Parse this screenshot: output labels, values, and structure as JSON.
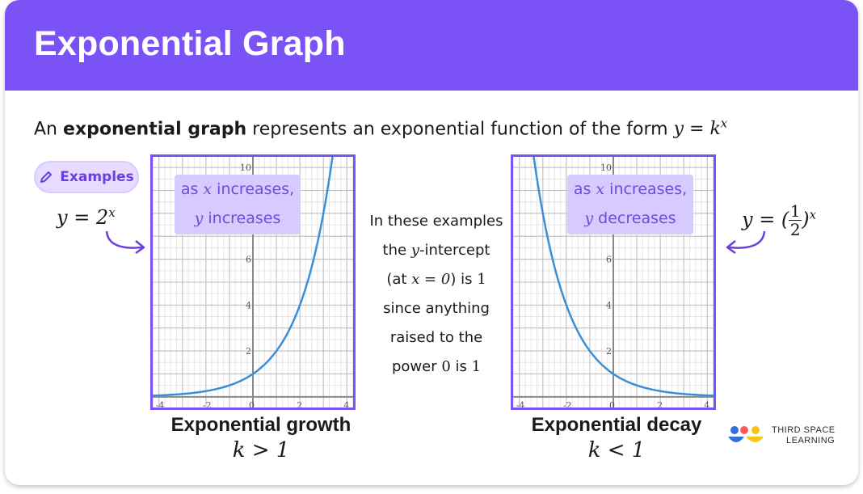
{
  "header": {
    "title": "Exponential Graph"
  },
  "intro": {
    "prefix": "An ",
    "bold": "exponential graph",
    "middle": " represents an exponential function of the form ",
    "formula_y": "y",
    "formula_eq": " = ",
    "formula_k": "k",
    "formula_exp": "x"
  },
  "examples_button": {
    "label": "Examples",
    "icon": "pencil-icon"
  },
  "left_equation": {
    "lhs": "y = 2",
    "exp": "x"
  },
  "right_equation": {
    "lhs": "y = (",
    "num": "1",
    "den": "2",
    "rhs": ")",
    "exp": "x"
  },
  "left_callout": {
    "line1_pre": "as ",
    "line1_var": "x",
    "line1_post": " increases,",
    "line2_var": "y",
    "line2_post": " increases"
  },
  "right_callout": {
    "line1_pre": "as ",
    "line1_var": "x",
    "line1_post": " increases,",
    "line2_var": "y",
    "line2_post": " decreases"
  },
  "middle_note": {
    "l1": "In these examples",
    "l2_pre": "the ",
    "l2_var": "y",
    "l2_post": "-intercept",
    "l3_pre": "(at ",
    "l3_math": "x = 0",
    "l3_mid": ") is ",
    "l3_val": "1",
    "l4": "since anything",
    "l5": "raised to the",
    "l6_pre": "power ",
    "l6_zero": "0",
    "l6_mid": " is ",
    "l6_one": "1"
  },
  "left_graph": {
    "label": "Exponential growth",
    "condition": "k > 1"
  },
  "right_graph": {
    "label": "Exponential decay",
    "condition": "k < 1"
  },
  "logo": {
    "line1": "THIRD SPACE",
    "line2": "LEARNING"
  },
  "colors": {
    "brand": "#7b52f5",
    "curve": "#3b8fd9",
    "frame": "#7b52f5",
    "callout": "#d6caff"
  },
  "chart_data": [
    {
      "type": "line",
      "title": "",
      "function": "y = 2^x",
      "xlim": [
        -4.3,
        4.3
      ],
      "ylim": [
        -0.5,
        10.5
      ],
      "x_ticks": [
        "-4",
        "-2",
        "0",
        "2",
        "4"
      ],
      "y_ticks": [
        "2",
        "4",
        "6",
        "10"
      ],
      "series": [
        {
          "x": [
            -4.3,
            -3,
            -2,
            -1,
            0,
            1,
            2,
            3,
            3.39
          ],
          "y": [
            0.05,
            0.125,
            0.25,
            0.5,
            1,
            2,
            4,
            8,
            10.5
          ]
        }
      ]
    },
    {
      "type": "line",
      "title": "",
      "function": "y = (1/2)^x",
      "xlim": [
        -4.3,
        4.3
      ],
      "ylim": [
        -0.5,
        10.5
      ],
      "x_ticks": [
        "-4",
        "-2",
        "0",
        "2",
        "4"
      ],
      "y_ticks": [
        "2",
        "4",
        "6",
        "10"
      ],
      "series": [
        {
          "x": [
            -3.39,
            -3,
            -2,
            -1,
            0,
            1,
            2,
            3,
            4.3
          ],
          "y": [
            10.5,
            8,
            4,
            2,
            1,
            0.5,
            0.25,
            0.125,
            0.05
          ]
        }
      ]
    }
  ]
}
